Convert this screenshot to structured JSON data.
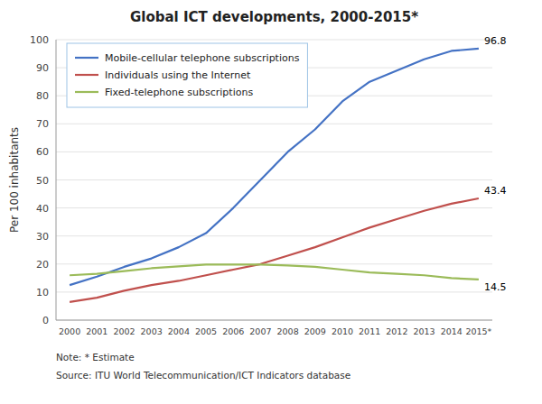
{
  "chart_data": {
    "type": "line",
    "title": "Global ICT developments, 2000-2015*",
    "ylabel": "Per 100 inhabitants",
    "categories": [
      "2000",
      "2001",
      "2002",
      "2003",
      "2004",
      "2005",
      "2006",
      "2007",
      "2008",
      "2009",
      "2010",
      "2011",
      "2012",
      "2013",
      "2014",
      "2015*"
    ],
    "series": [
      {
        "name": "Mobile-cellular telephone subscriptions",
        "color": "#4472c4",
        "values": [
          12.5,
          15.5,
          19.0,
          22.0,
          26.0,
          31.0,
          40.0,
          50.0,
          60.0,
          68.0,
          78.0,
          85.0,
          89.0,
          93.0,
          96.0,
          96.8
        ]
      },
      {
        "name": "Individuals using the Internet",
        "color": "#c0504d",
        "values": [
          6.5,
          8.0,
          10.5,
          12.5,
          14.0,
          16.0,
          18.0,
          20.0,
          23.0,
          26.0,
          29.5,
          33.0,
          36.0,
          39.0,
          41.5,
          43.4
        ]
      },
      {
        "name": "Fixed-telephone subscriptions",
        "color": "#9bbb59",
        "values": [
          16.0,
          16.5,
          17.5,
          18.5,
          19.2,
          19.8,
          19.8,
          19.8,
          19.5,
          19.0,
          18.0,
          17.0,
          16.5,
          16.0,
          15.0,
          14.5
        ]
      }
    ],
    "annotations": [
      {
        "text": "96.8",
        "x": "2015*",
        "y": 96.8
      },
      {
        "text": "43.4",
        "x": "2015*",
        "y": 43.4
      },
      {
        "text": "14.5",
        "x": "2015*",
        "y": 14.5
      }
    ],
    "notes": [
      "Note: * Estimate",
      "Source: ITU World Telecommunication/ICT Indicators database"
    ],
    "ylim": [
      0,
      100
    ],
    "yticks": [
      0,
      10,
      20,
      30,
      40,
      50,
      60,
      70,
      80,
      90,
      100
    ],
    "grid": true,
    "legend": "upper left"
  }
}
